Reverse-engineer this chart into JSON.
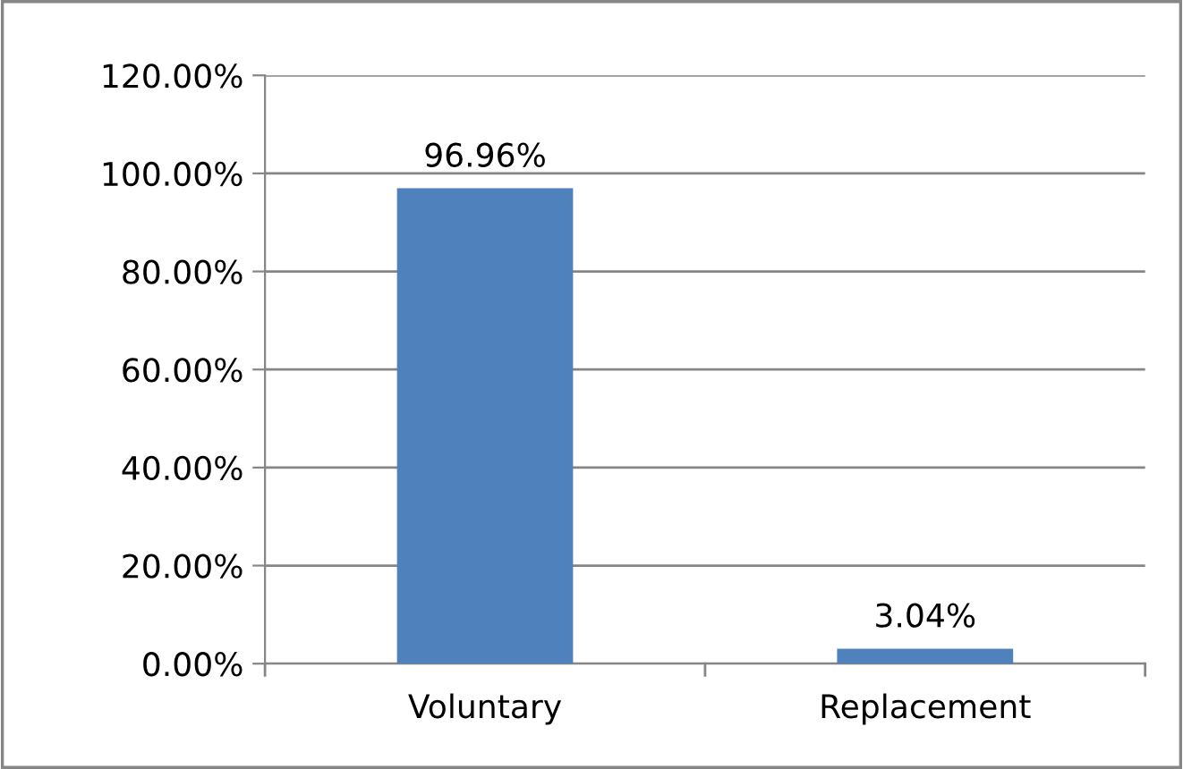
{
  "chart_data": {
    "type": "bar",
    "categories": [
      "Voluntary",
      "Replacement"
    ],
    "values": [
      96.96,
      3.04
    ],
    "color": "#4f81bd",
    "value_labels": [
      "96.96%",
      "3.04%"
    ],
    "ylim": [
      0,
      120
    ],
    "yticks": [
      {
        "value": 0,
        "label": "0.00%"
      },
      {
        "value": 20,
        "label": "20.00%"
      },
      {
        "value": 40,
        "label": "40.00%"
      },
      {
        "value": 60,
        "label": "60.00%"
      },
      {
        "value": 80,
        "label": "80.00%"
      },
      {
        "value": 100,
        "label": "100.00%"
      },
      {
        "value": 120,
        "label": "120.00%"
      }
    ],
    "grid": "y",
    "legend": false
  }
}
